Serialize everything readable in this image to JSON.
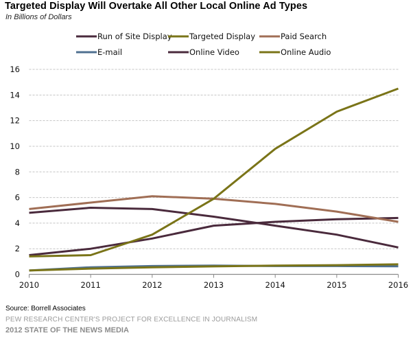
{
  "chart_data": {
    "type": "line",
    "title": "Targeted Display Will Overtake All Other Local Online Ad Types",
    "subtitle": "In Billions of Dollars",
    "xlabel": "",
    "ylabel": "",
    "x": [
      "2010",
      "2011",
      "2012",
      "2013",
      "2014",
      "2015",
      "2016"
    ],
    "ylim": [
      0,
      16
    ],
    "yticks": [
      "0",
      "2",
      "4",
      "6",
      "8",
      "10",
      "12",
      "14",
      "16"
    ],
    "grid": true,
    "legend_position": "top",
    "series": [
      {
        "name": "Run of Site Display",
        "color": "#4a2a3c",
        "values": [
          4.8,
          5.2,
          5.1,
          4.5,
          3.8,
          3.1,
          2.1
        ]
      },
      {
        "name": "Targeted Display",
        "color": "#7a7418",
        "values": [
          1.4,
          1.5,
          3.1,
          5.9,
          9.8,
          12.7,
          14.5
        ]
      },
      {
        "name": "Paid Search",
        "color": "#a06e55",
        "values": [
          5.1,
          5.6,
          6.1,
          5.9,
          5.5,
          4.9,
          4.1
        ]
      },
      {
        "name": "E-mail",
        "color": "#4f7090",
        "values": [
          0.3,
          0.55,
          0.65,
          0.68,
          0.65,
          0.65,
          0.63
        ]
      },
      {
        "name": "Online Video",
        "color": "#4a2a3c",
        "values": [
          1.5,
          2.0,
          2.8,
          3.8,
          4.1,
          4.3,
          4.4
        ]
      },
      {
        "name": "Online Audio",
        "color": "#7a7418",
        "values": [
          0.3,
          0.45,
          0.55,
          0.62,
          0.68,
          0.72,
          0.78
        ]
      }
    ]
  },
  "footer": {
    "source": "Source: Borrell Associates",
    "org": "PEW RESEARCH CENTER'S PROJECT FOR EXCELLENCE IN JOURNALISM",
    "report": "2012 STATE OF THE NEWS MEDIA"
  }
}
